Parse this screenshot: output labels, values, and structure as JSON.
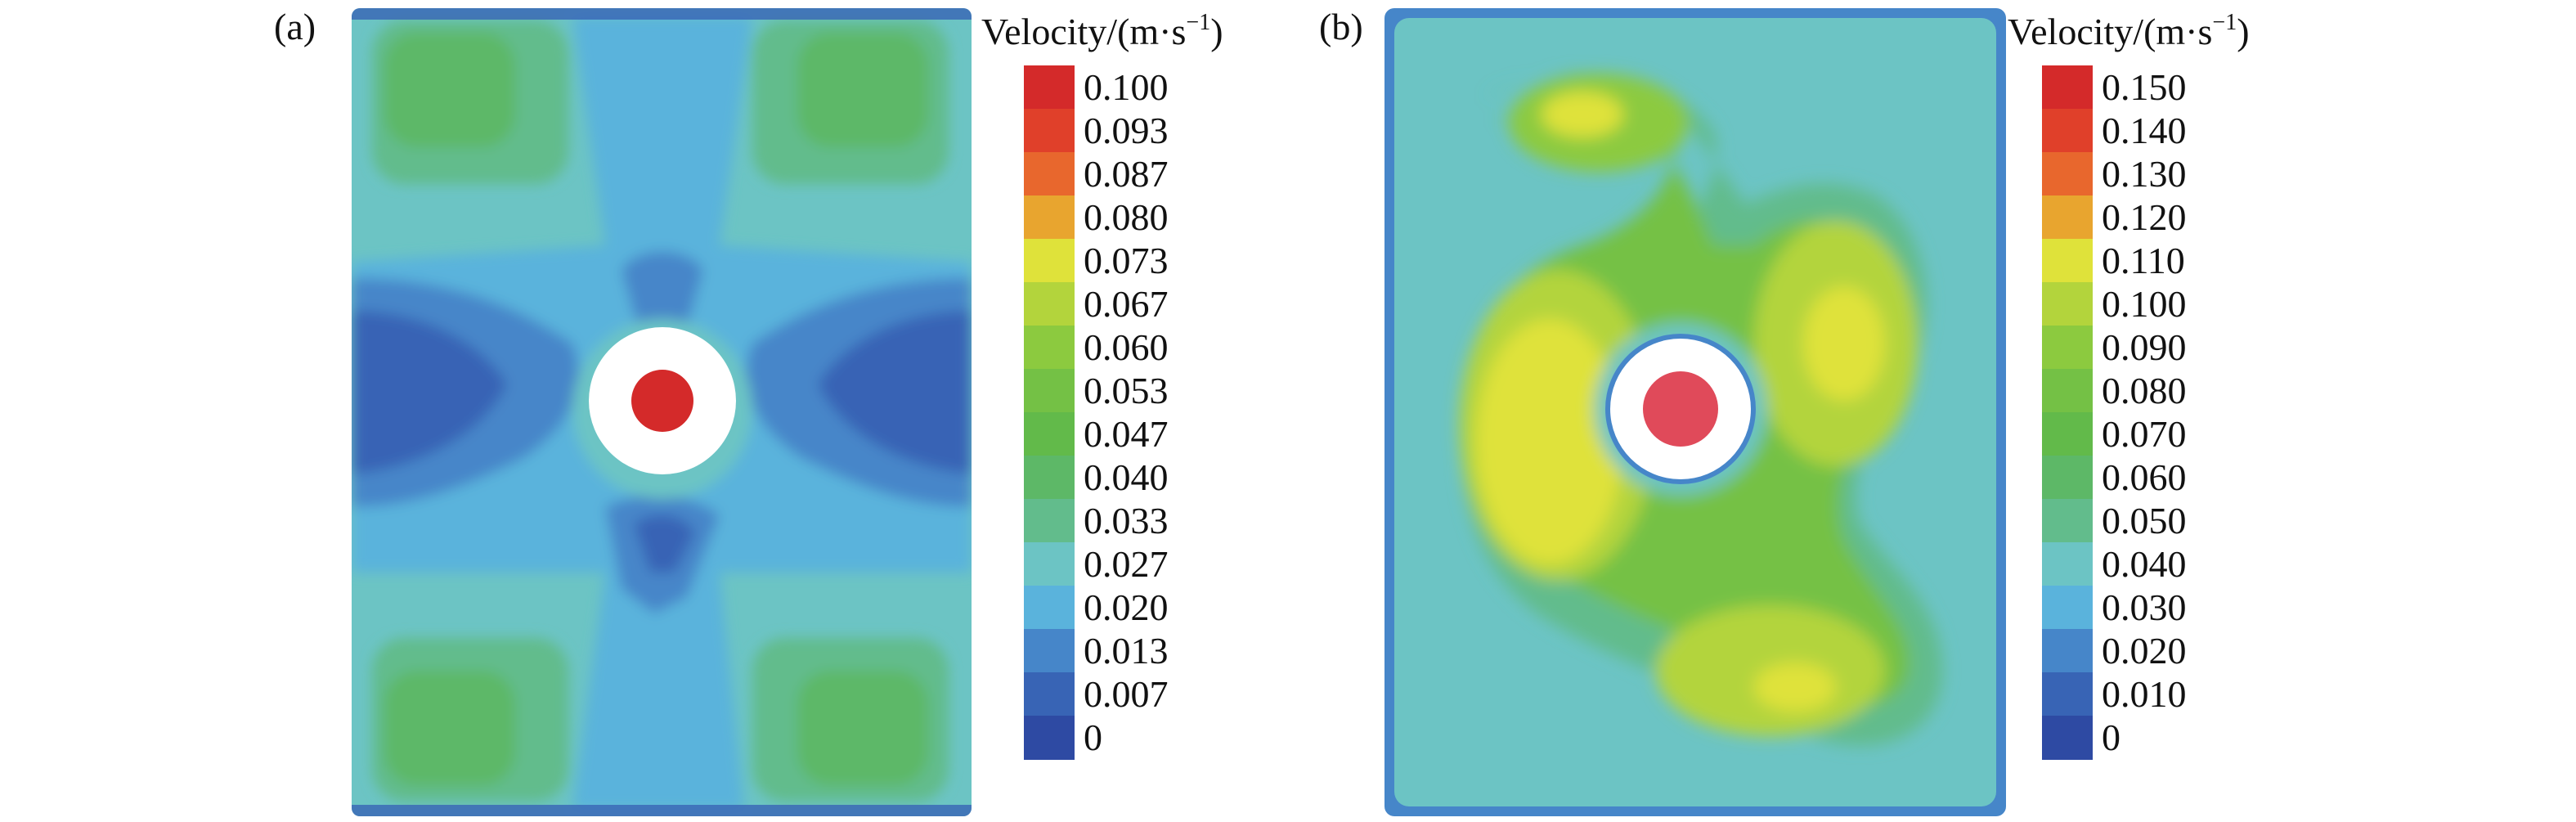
{
  "panels": [
    {
      "label": "(a)",
      "colorbar": {
        "title": "Velocity/(m·s",
        "title_sup": "−1",
        "title_close": ")",
        "ticks": [
          "0.100",
          "0.093",
          "0.087",
          "0.080",
          "0.073",
          "0.067",
          "0.060",
          "0.053",
          "0.047",
          "0.040",
          "0.033",
          "0.027",
          "0.020",
          "0.013",
          "0.007",
          "0"
        ]
      }
    },
    {
      "label": "(b)",
      "colorbar": {
        "title": "Velocity/(m·s",
        "title_sup": "−1",
        "title_close": ")",
        "ticks": [
          "0.150",
          "0.140",
          "0.130",
          "0.120",
          "0.110",
          "0.100",
          "0.090",
          "0.080",
          "0.070",
          "0.060",
          "0.050",
          "0.040",
          "0.030",
          "0.020",
          "0.010",
          "0"
        ]
      }
    }
  ],
  "colorscale": [
    "#d42a2a",
    "#e0402a",
    "#e8672d",
    "#e8a52f",
    "#dfe23a",
    "#b3d43c",
    "#8cca3f",
    "#74c145",
    "#62ba4a",
    "#5db867",
    "#62bc8c",
    "#6cc4c4",
    "#5ab3dc",
    "#4686c9",
    "#3864b5",
    "#2e4aa3"
  ],
  "chart_data": [
    {
      "type": "heatmap",
      "title": "(a)",
      "colorbar_label": "Velocity/(m·s−1)",
      "levels": [
        0.1,
        0.093,
        0.087,
        0.08,
        0.073,
        0.067,
        0.06,
        0.053,
        0.047,
        0.04,
        0.033,
        0.027,
        0.02,
        0.013,
        0.007,
        0
      ],
      "range": [
        0,
        0.1
      ],
      "regions": [
        {
          "name": "top-left corner",
          "value": 0.04
        },
        {
          "name": "top-right corner",
          "value": 0.04
        },
        {
          "name": "bottom-left corner",
          "value": 0.04
        },
        {
          "name": "bottom-right corner",
          "value": 0.04
        },
        {
          "name": "left middle",
          "value": 0.007
        },
        {
          "name": "right middle",
          "value": 0.007
        },
        {
          "name": "central cross",
          "value": 0.02
        },
        {
          "name": "center circle",
          "value": 0.1
        }
      ]
    },
    {
      "type": "heatmap",
      "title": "(b)",
      "colorbar_label": "Velocity/(m·s−1)",
      "levels": [
        0.15,
        0.14,
        0.13,
        0.12,
        0.11,
        0.1,
        0.09,
        0.08,
        0.07,
        0.06,
        0.05,
        0.04,
        0.03,
        0.02,
        0.01,
        0
      ],
      "range": [
        0,
        0.15
      ],
      "regions": [
        {
          "name": "upper-left blob",
          "value": 0.11
        },
        {
          "name": "left-center blob",
          "value": 0.11
        },
        {
          "name": "right-center blob",
          "value": 0.11
        },
        {
          "name": "lower-right blob",
          "value": 0.11
        },
        {
          "name": "background",
          "value": 0.04
        },
        {
          "name": "border",
          "value": 0.02
        },
        {
          "name": "center circle",
          "value": 0.15
        }
      ]
    }
  ]
}
